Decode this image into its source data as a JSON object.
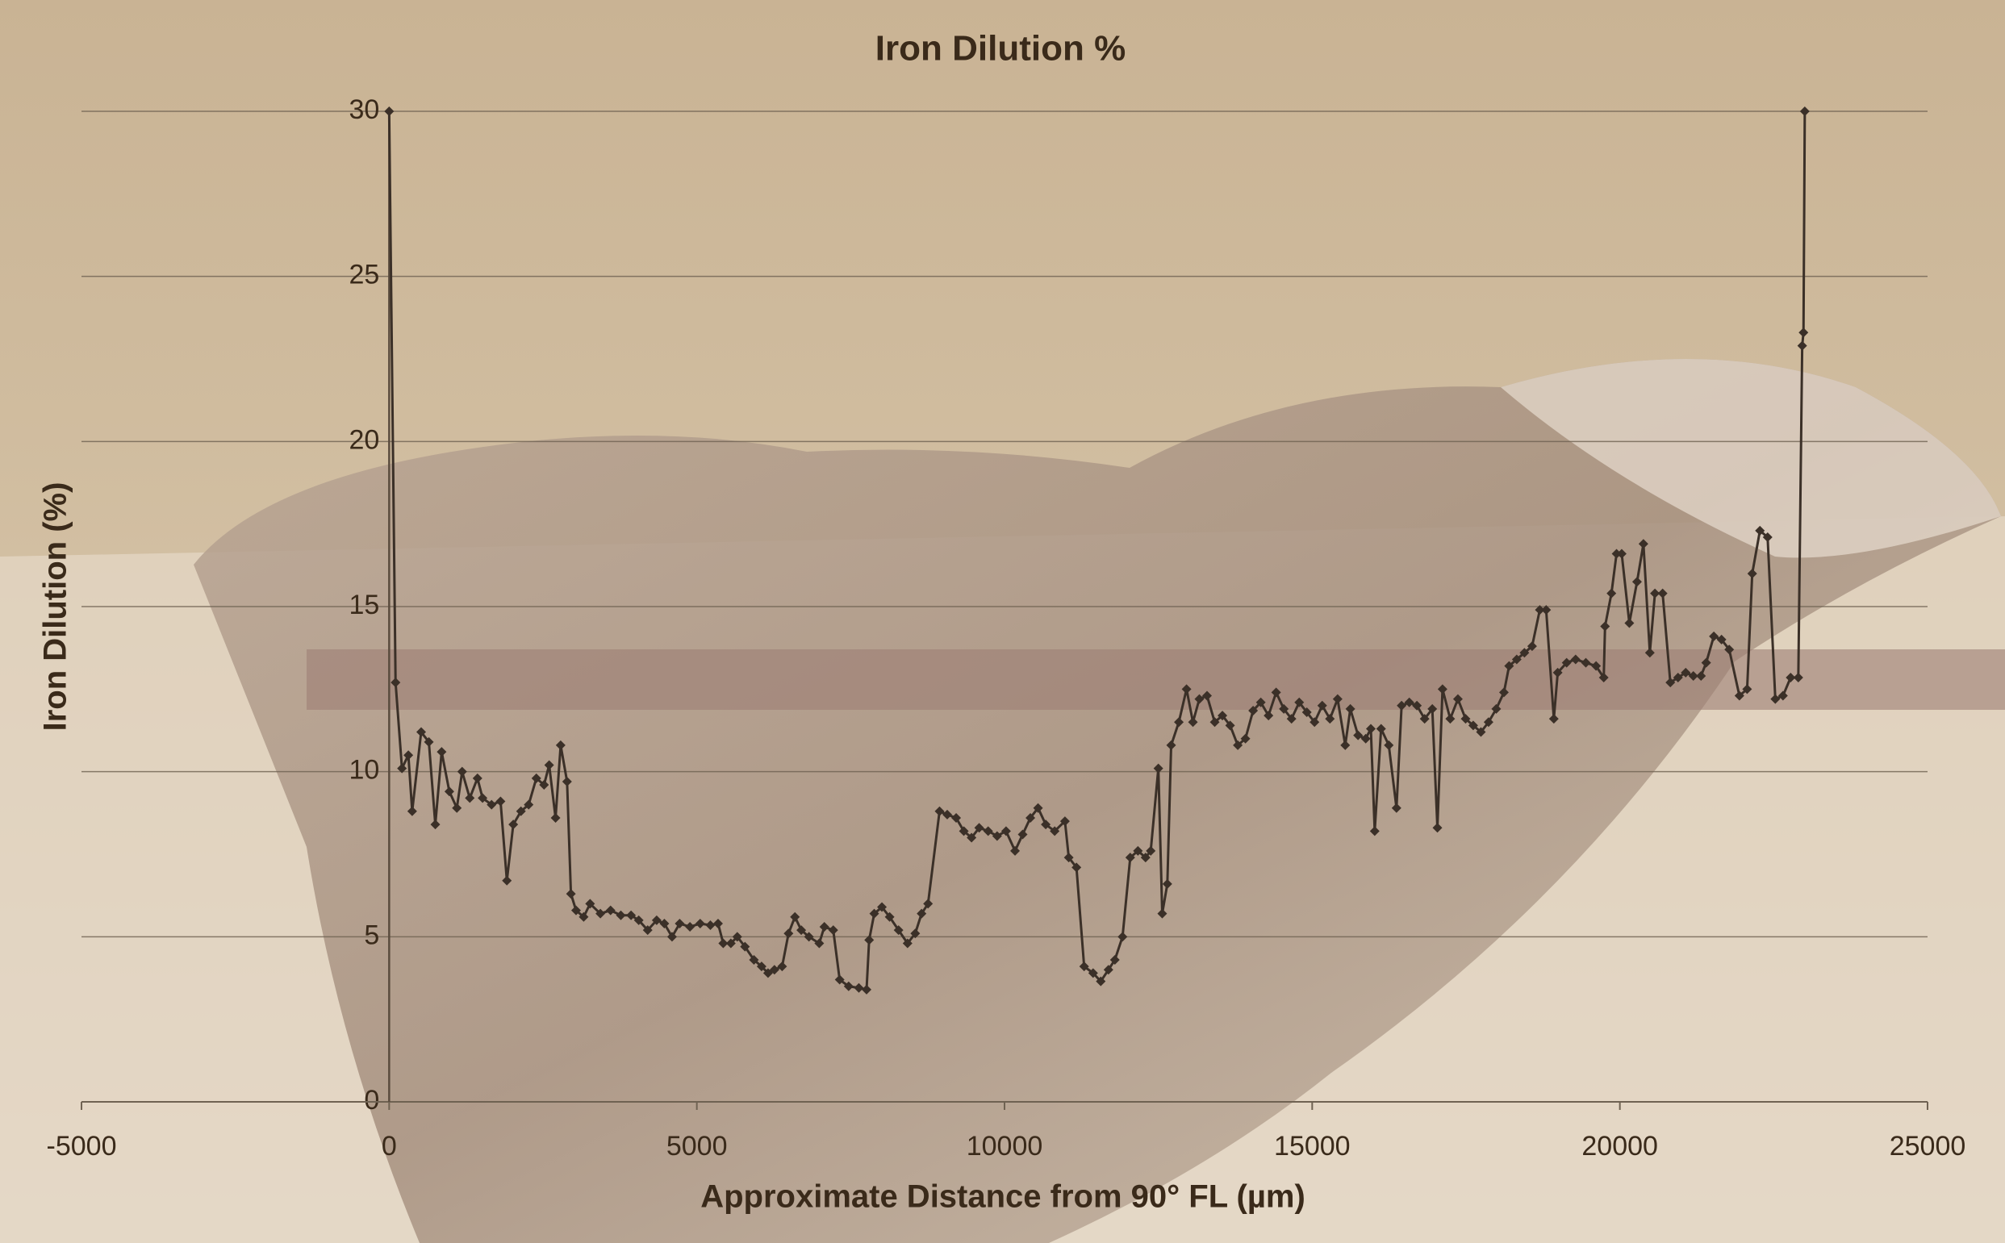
{
  "chart_data": {
    "type": "line",
    "title": "Iron Dilution %",
    "x_label": "Approximate Distance from 90° FL (µm)",
    "y_label": "Iron Dilution (%)",
    "x": [
      0,
      104,
      208,
      312,
      374,
      520,
      645,
      750,
      853,
      978,
      1100,
      1186,
      1310,
      1435,
      1518,
      1664,
      1810,
      1913,
      2017,
      2142,
      2267,
      2392,
      2517,
      2600,
      2704,
      2787,
      2891,
      2954,
      3037,
      3161,
      3265,
      3432,
      3598,
      3765,
      3931,
      4056,
      4201,
      4347,
      4472,
      4597,
      4721,
      4888,
      5054,
      5220,
      5345,
      5429,
      5553,
      5657,
      5782,
      5928,
      6052,
      6157,
      6261,
      6386,
      6490,
      6594,
      6697,
      6822,
      6989,
      7072,
      7217,
      7321,
      7467,
      7633,
      7758,
      7800,
      7883,
      8008,
      8133,
      8278,
      8424,
      8549,
      8652,
      8757,
      8944,
      9069,
      9214,
      9339,
      9464,
      9588,
      9734,
      9880,
      10025,
      10171,
      10295,
      10420,
      10545,
      10670,
      10815,
      10982,
      11044,
      11169,
      11294,
      11440,
      11564,
      11689,
      11793,
      11918,
      12043,
      12168,
      12292,
      12376,
      12500,
      12563,
      12646,
      12708,
      12833,
      12958,
      13062,
      13166,
      13291,
      13416,
      13541,
      13666,
      13791,
      13915,
      14040,
      14165,
      14290,
      14414,
      14539,
      14664,
      14789,
      14913,
      15038,
      15163,
      15288,
      15413,
      15537,
      15620,
      15745,
      15870,
      15953,
      16016,
      16120,
      16245,
      16370,
      16453,
      16578,
      16702,
      16827,
      16952,
      17035,
      17118,
      17243,
      17368,
      17493,
      17617,
      17742,
      17866,
      17991,
      18116,
      18200,
      18324,
      18449,
      18574,
      18699,
      18802,
      18927,
      18990,
      19135,
      19281,
      19447,
      19613,
      19738,
      19759,
      19863,
      19946,
      20030,
      20154,
      20279,
      20383,
      20487,
      20570,
      20695,
      20820,
      20945,
      21070,
      21194,
      21319,
      21403,
      21527,
      21652,
      21777,
      21943,
      22068,
      22151,
      22276,
      22401,
      22526,
      22651,
      22775,
      22900,
      22963,
      22984,
      23005
    ],
    "values": [
      30,
      12.7,
      10.1,
      10.5,
      8.8,
      11.2,
      10.9,
      8.4,
      10.6,
      9.4,
      8.9,
      10.0,
      9.2,
      9.8,
      9.2,
      9.0,
      9.1,
      6.7,
      8.4,
      8.8,
      9.0,
      9.8,
      9.6,
      10.2,
      8.6,
      10.8,
      9.7,
      6.3,
      5.8,
      5.6,
      6.0,
      5.7,
      5.8,
      5.65,
      5.65,
      5.5,
      5.2,
      5.5,
      5.4,
      5.0,
      5.4,
      5.3,
      5.4,
      5.35,
      5.4,
      4.8,
      4.8,
      5.0,
      4.7,
      4.3,
      4.1,
      3.9,
      4.0,
      4.1,
      5.1,
      5.6,
      5.2,
      5.0,
      4.8,
      5.3,
      5.2,
      3.7,
      3.5,
      3.45,
      3.4,
      4.9,
      5.7,
      5.9,
      5.6,
      5.2,
      4.8,
      5.1,
      5.7,
      6.0,
      8.8,
      8.7,
      8.6,
      8.2,
      8.0,
      8.3,
      8.2,
      8.05,
      8.2,
      7.6,
      8.1,
      8.6,
      8.9,
      8.4,
      8.2,
      8.5,
      7.4,
      7.1,
      4.1,
      3.9,
      3.65,
      4.0,
      4.3,
      5.0,
      7.4,
      7.6,
      7.4,
      7.6,
      10.1,
      5.7,
      6.6,
      10.8,
      11.5,
      12.5,
      11.5,
      12.2,
      12.3,
      11.5,
      11.7,
      11.4,
      10.8,
      11.0,
      11.85,
      12.1,
      11.7,
      12.4,
      11.9,
      11.6,
      12.1,
      11.8,
      11.5,
      12.0,
      11.6,
      12.2,
      10.8,
      11.9,
      11.1,
      11.0,
      11.3,
      8.2,
      11.3,
      10.8,
      8.9,
      12.0,
      12.1,
      12.0,
      11.6,
      11.9,
      8.3,
      12.5,
      11.6,
      12.2,
      11.6,
      11.4,
      11.2,
      11.5,
      11.9,
      12.4,
      13.2,
      13.4,
      13.6,
      13.8,
      14.9,
      14.9,
      11.6,
      13.0,
      13.3,
      13.4,
      13.3,
      13.2,
      12.85,
      14.4,
      15.4,
      16.6,
      16.6,
      14.5,
      15.75,
      16.9,
      13.6,
      15.4,
      15.4,
      12.7,
      12.85,
      13.0,
      12.9,
      12.9,
      13.3,
      14.1,
      14.0,
      13.7,
      12.3,
      12.5,
      16.0,
      17.3,
      17.1,
      12.2,
      12.3,
      12.85,
      12.85,
      22.9,
      23.3,
      30
    ],
    "color": "#3b3028",
    "marker": "diamond",
    "xlim": [
      -5000,
      25000
    ],
    "xticks": [
      -5000,
      0,
      5000,
      10000,
      15000,
      20000,
      25000
    ],
    "ylim": [
      0,
      30
    ],
    "yticks": [
      0,
      5,
      10,
      15,
      20,
      25,
      30
    ],
    "grid": true
  }
}
